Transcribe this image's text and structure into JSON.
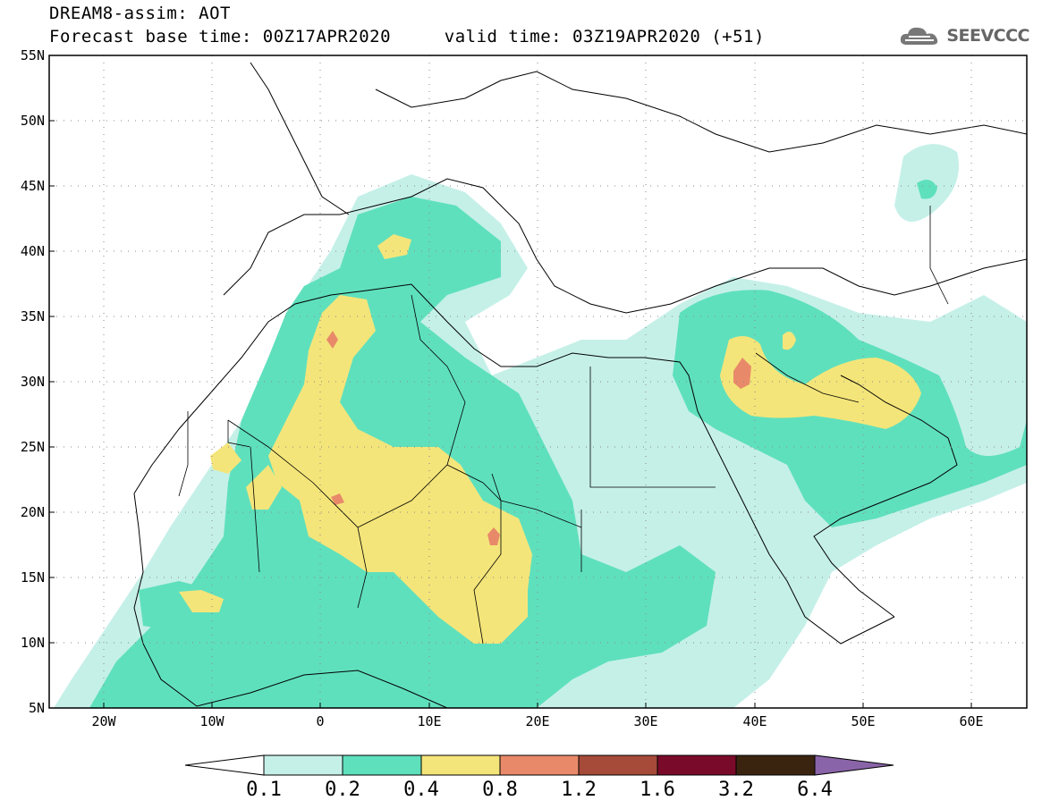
{
  "header": {
    "title": "DREAM8-assim: AOT",
    "forecast_base": "Forecast base time: 00Z17APR2020",
    "valid_time": "valid time: 03Z19APR2020 (+51)"
  },
  "logo": {
    "text": "SEEVCCC",
    "icon": "cloud-logo-icon"
  },
  "map": {
    "lat_labels": [
      "55N",
      "50N",
      "45N",
      "40N",
      "35N",
      "30N",
      "25N",
      "20N",
      "15N",
      "10N",
      "5N"
    ],
    "lon_labels": [
      "20W",
      "10W",
      "0",
      "10E",
      "20E",
      "30E",
      "40E",
      "50E",
      "60E"
    ],
    "lat_range": [
      5,
      55
    ],
    "lon_range": [
      -25,
      65
    ],
    "grid": "dotted"
  },
  "legend": {
    "labels": [
      "0.1",
      "0.2",
      "0.4",
      "0.8",
      "1.2",
      "1.6",
      "3.2",
      "6.4"
    ],
    "colors": [
      "#ffffff",
      "#c5f0e8",
      "#5fe0bd",
      "#f4e57a",
      "#e88a6a",
      "#a64a3a",
      "#7a0a2a",
      "#3a2410",
      "#8a64a8"
    ]
  },
  "field_levels": {
    "0.1": "#c5f0e8",
    "0.2": "#5fe0bd",
    "0.4": "#f4e57a",
    "0.8": "#e88a6a",
    "coastline": "#000000"
  }
}
